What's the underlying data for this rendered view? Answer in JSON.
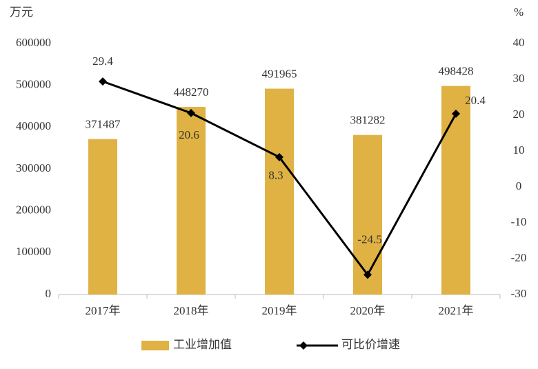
{
  "chart_data": {
    "type": "bar-line",
    "y_label": "万元",
    "y2_label": "%",
    "categories": [
      "2017年",
      "2018年",
      "2019年",
      "2020年",
      "2021年"
    ],
    "series": [
      {
        "name": "工业增加值",
        "type": "bar",
        "color": "#DFB243",
        "values": [
          371487,
          448270,
          491965,
          381282,
          498428
        ]
      },
      {
        "name": "可比价增速",
        "type": "line",
        "color": "#000000",
        "axis": "y2",
        "values": [
          29.4,
          20.6,
          8.3,
          -24.5,
          20.4
        ]
      }
    ],
    "ylim": [
      0,
      600000
    ],
    "yticks": [
      0,
      100000,
      200000,
      300000,
      400000,
      500000,
      600000
    ],
    "y2lim": [
      -30,
      40
    ],
    "y2ticks": [
      -30,
      -20,
      -10,
      0,
      10,
      20,
      30,
      40
    ],
    "legend": "bottom"
  }
}
